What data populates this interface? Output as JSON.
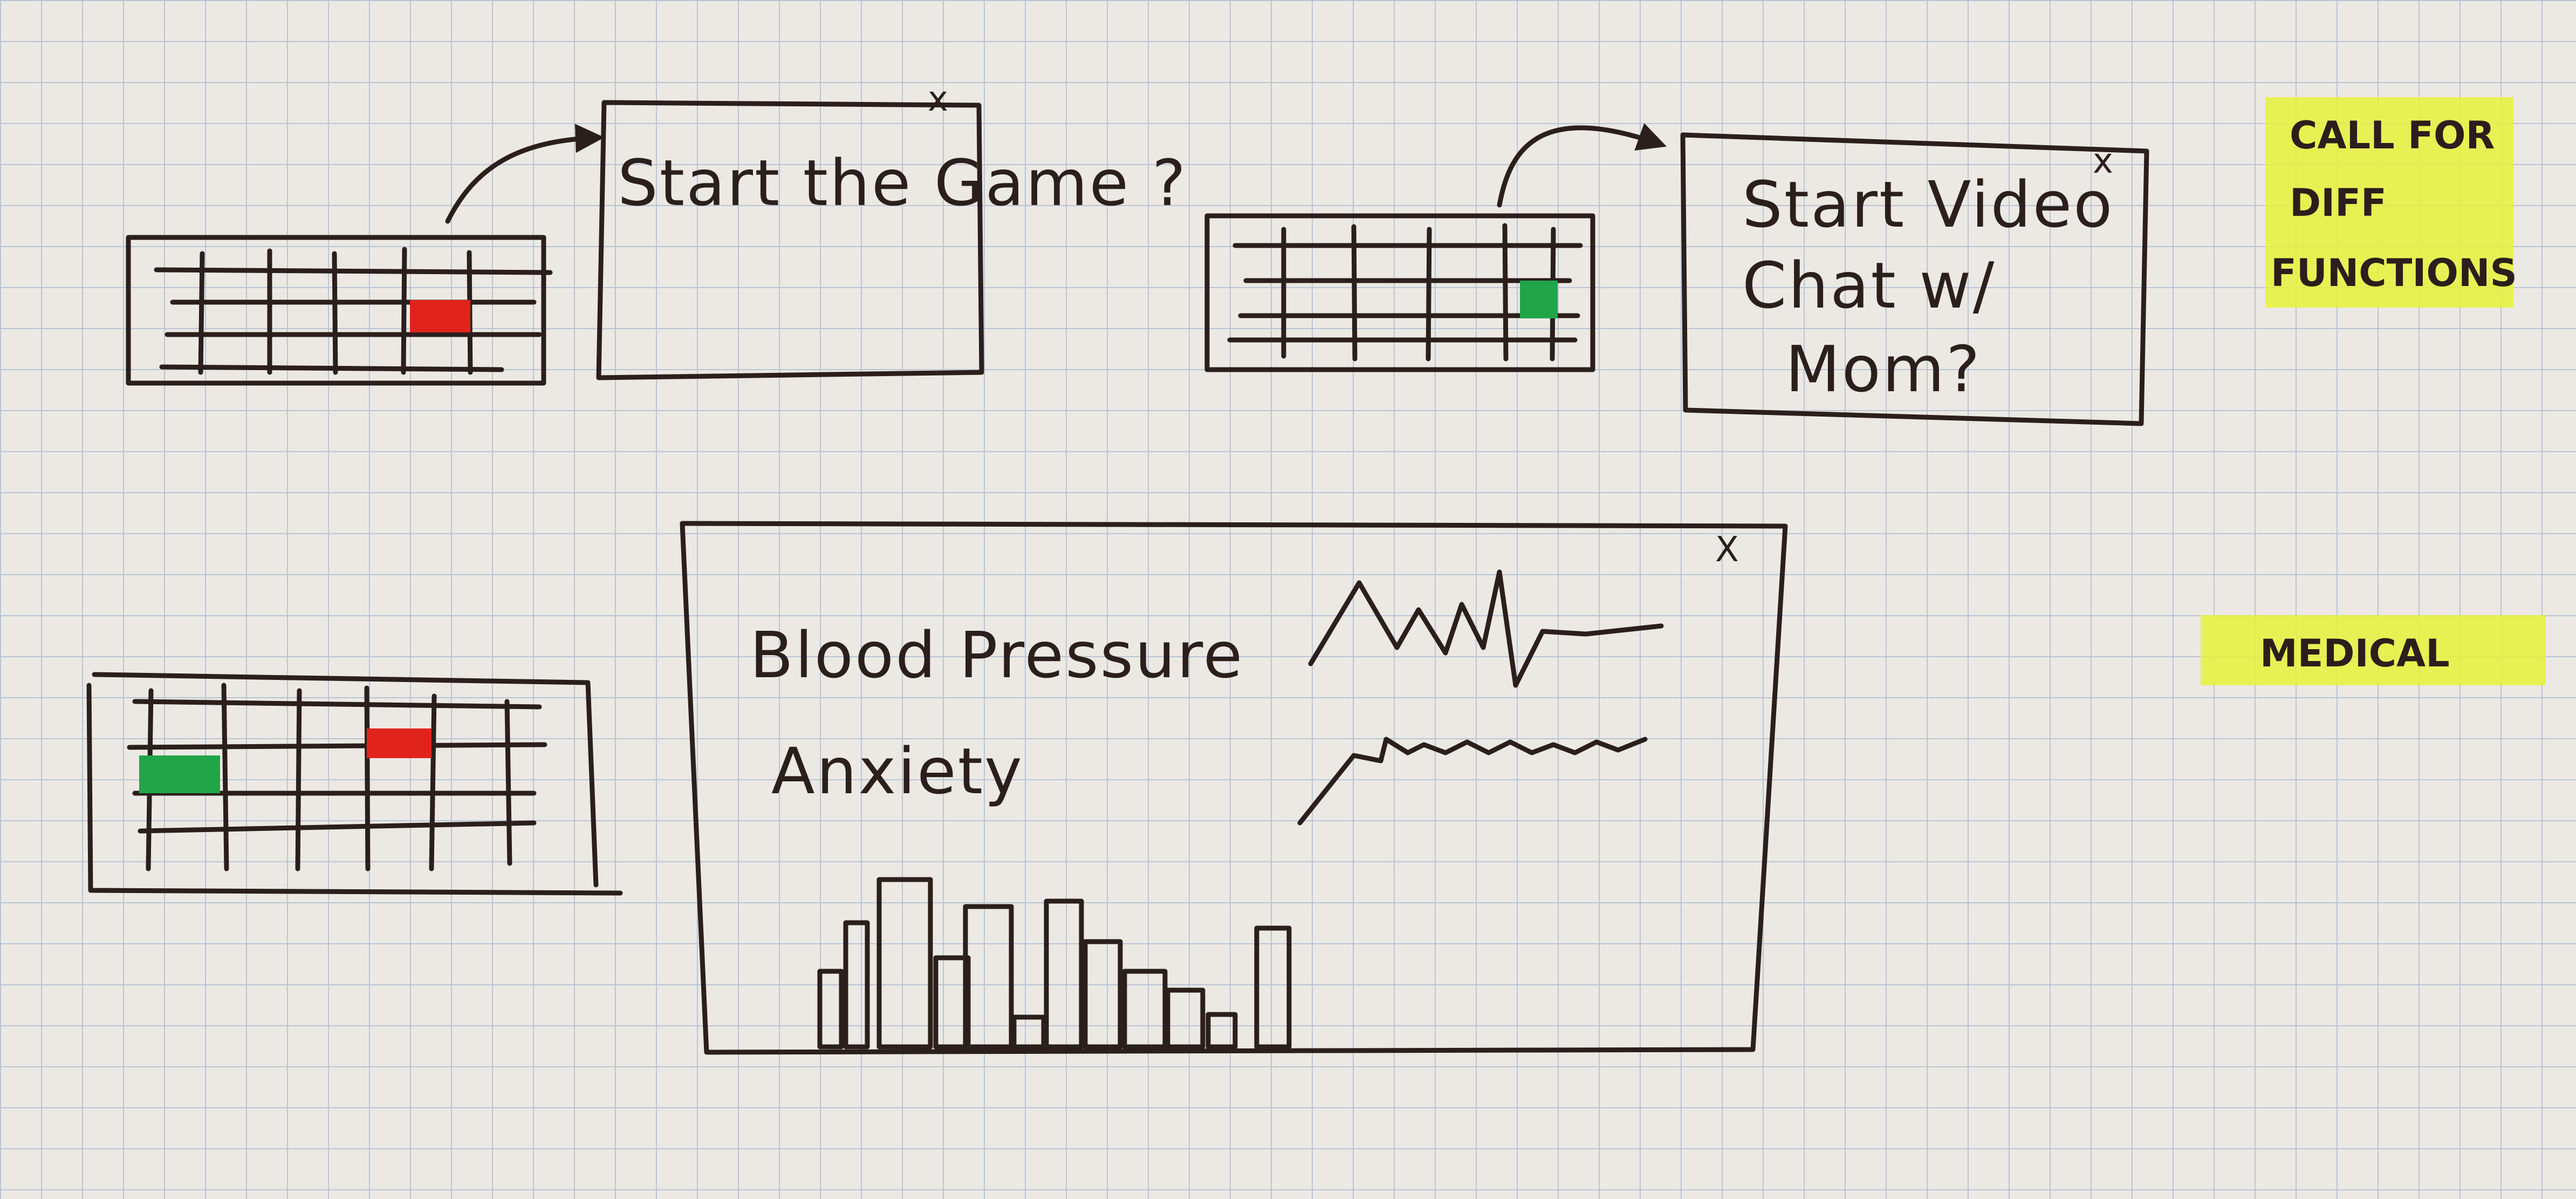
{
  "dialogs": {
    "game_prompt": "Start the Game ?",
    "video_prompt_line1": "Start Video",
    "video_prompt_line2": "Chat w/",
    "video_prompt_line3": "Mom?",
    "close_glyph": "x"
  },
  "medical_panel": {
    "metric_1": "Blood Pressure",
    "metric_2": "Anxiety",
    "close_glyph": "X"
  },
  "notes": {
    "call_line1": "CALL FOR",
    "call_line2": "DIFF",
    "call_line3": "FUNCTIONS",
    "medical": "MEDICAL"
  },
  "colors": {
    "ink": "#2b1f1c",
    "highlight": "#e8f23a",
    "alert_red": "#e0241c",
    "ok_green": "#22a548"
  }
}
